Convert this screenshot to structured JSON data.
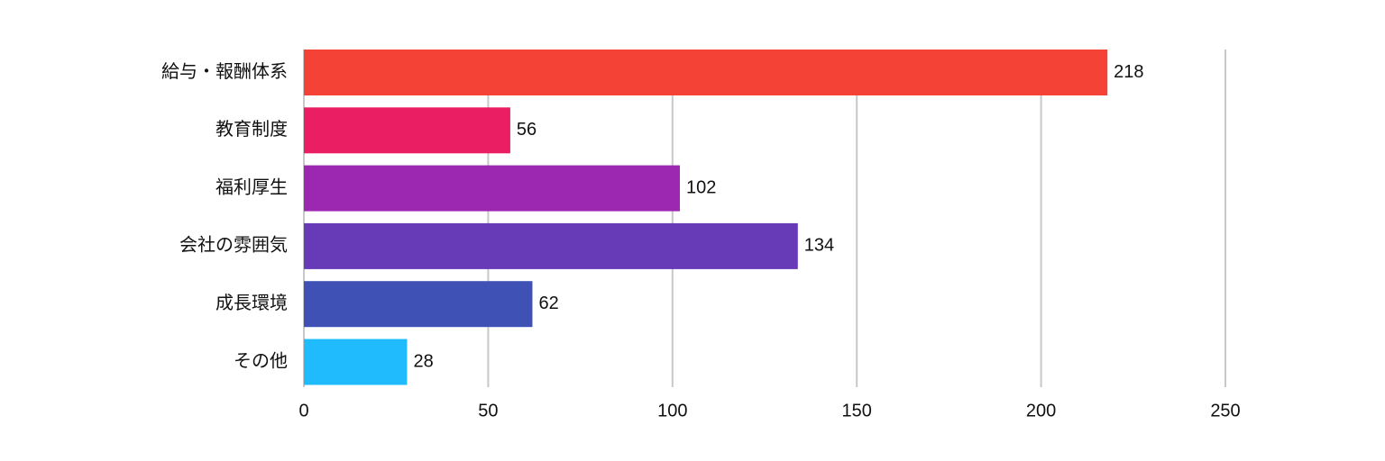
{
  "chart_data": {
    "type": "bar",
    "orientation": "horizontal",
    "categories": [
      "給与・報酬体系",
      "教育制度",
      "福利厚生",
      "会社の雰囲気",
      "成長環境",
      "その他"
    ],
    "values": [
      218,
      56,
      102,
      134,
      62,
      28
    ],
    "colors": [
      "#f44336",
      "#e91e63",
      "#9c27b0",
      "#673ab7",
      "#3f51b5",
      "#20bbfc"
    ],
    "xlim": [
      0,
      250
    ],
    "xticks": [
      0,
      50,
      100,
      150,
      200,
      250
    ],
    "title": "",
    "xlabel": "",
    "ylabel": "",
    "grid": true,
    "data_labels": true
  }
}
